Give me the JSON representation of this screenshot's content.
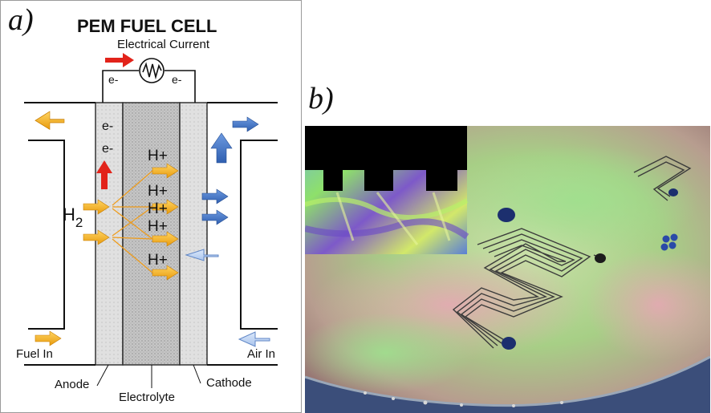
{
  "panel_a": {
    "label": "a)",
    "title": "PEM FUEL CELL",
    "subtitle": "Electrical Current",
    "electrons": [
      "e-",
      "e-",
      "e-",
      "e-"
    ],
    "hydrogen_symbol": "H",
    "hydrogen_subscript": "2",
    "protons": [
      "H+",
      "H+",
      "H+",
      "H+",
      "H+"
    ],
    "fuel_in": "Fuel In",
    "air_in": "Air In",
    "anode": "Anode",
    "electrolyte": "Electrolyte",
    "cathode": "Cathode",
    "colors": {
      "hydrogen_arrow": "#f5b21e",
      "air_arrow": "#3f77c7",
      "electron_arrow": "#e2231a",
      "electrolyte": "#bcbcbc",
      "electrode": "#dadada"
    }
  },
  "panel_b": {
    "label": "b)"
  }
}
